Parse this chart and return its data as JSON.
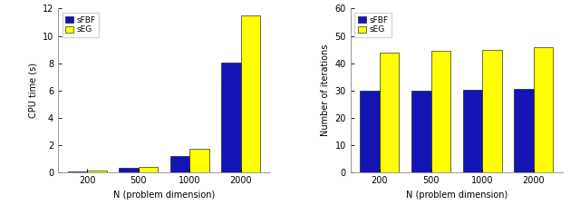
{
  "categories": [
    200,
    500,
    1000,
    2000
  ],
  "left": {
    "sFBF": [
      0.07,
      0.28,
      1.15,
      8.05
    ],
    "sEG": [
      0.1,
      0.4,
      1.68,
      11.5
    ],
    "ylabel": "CPU time (s)",
    "ylim": [
      0,
      12
    ],
    "yticks": [
      0,
      2,
      4,
      6,
      8,
      10,
      12
    ]
  },
  "right": {
    "sFBF": [
      30.0,
      30.0,
      30.2,
      30.6
    ],
    "sEG": [
      44.0,
      44.5,
      45.0,
      45.7
    ],
    "ylabel": "Number of iterations",
    "ylim": [
      0,
      60
    ],
    "yticks": [
      0,
      10,
      20,
      30,
      40,
      50,
      60
    ]
  },
  "xlabel": "N (problem dimension)",
  "legend_labels": [
    "sFBF",
    "sEG"
  ],
  "bar_colors": [
    "#1414b4",
    "#ffff00"
  ],
  "bar_width": 0.38,
  "tick_labels": [
    "200",
    "500",
    "1000",
    "2000"
  ],
  "background_color": "#ffffff",
  "edge_color": "#000000",
  "spine_color": "#888888"
}
